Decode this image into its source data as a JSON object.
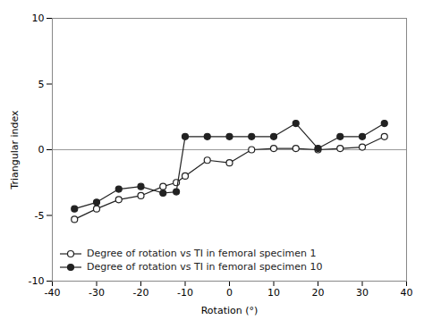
{
  "chart_data": {
    "type": "line",
    "x_label": "Rotation (°)",
    "y_label": "Triangular index",
    "x": [
      -35,
      -30,
      -25,
      -20,
      -15,
      -12,
      -10,
      -5,
      0,
      5,
      10,
      15,
      20,
      25,
      30,
      35
    ],
    "series": [
      {
        "name": "Degree of rotation vs TI in femoral specimen 1",
        "color": "#222222",
        "marker": "open-circle",
        "values": [
          -5.3,
          -4.5,
          -3.8,
          -3.5,
          -2.8,
          -2.5,
          -2.0,
          -0.8,
          -1.0,
          0.0,
          0.1,
          0.1,
          0.0,
          0.1,
          0.2,
          1.0
        ]
      },
      {
        "name": "Degree of rotation vs TI in femoral specimen 10",
        "color": "#222222",
        "marker": "circle",
        "values": [
          -4.5,
          -4.0,
          -3.0,
          -2.8,
          -3.3,
          -3.2,
          1.0,
          1.0,
          1.0,
          1.0,
          1.0,
          2.0,
          0.1,
          1.0,
          1.0,
          2.0
        ]
      }
    ],
    "hline": {
      "y": 0,
      "color": "#999999"
    },
    "xlim": [
      -40,
      40
    ],
    "ylim": [
      -10,
      10
    ],
    "xticks": [
      -40,
      -30,
      -20,
      -10,
      0,
      10,
      20,
      30,
      40
    ],
    "yticks": [
      -10,
      -5,
      0,
      5,
      10
    ],
    "grid": false,
    "legend": "lower left"
  }
}
